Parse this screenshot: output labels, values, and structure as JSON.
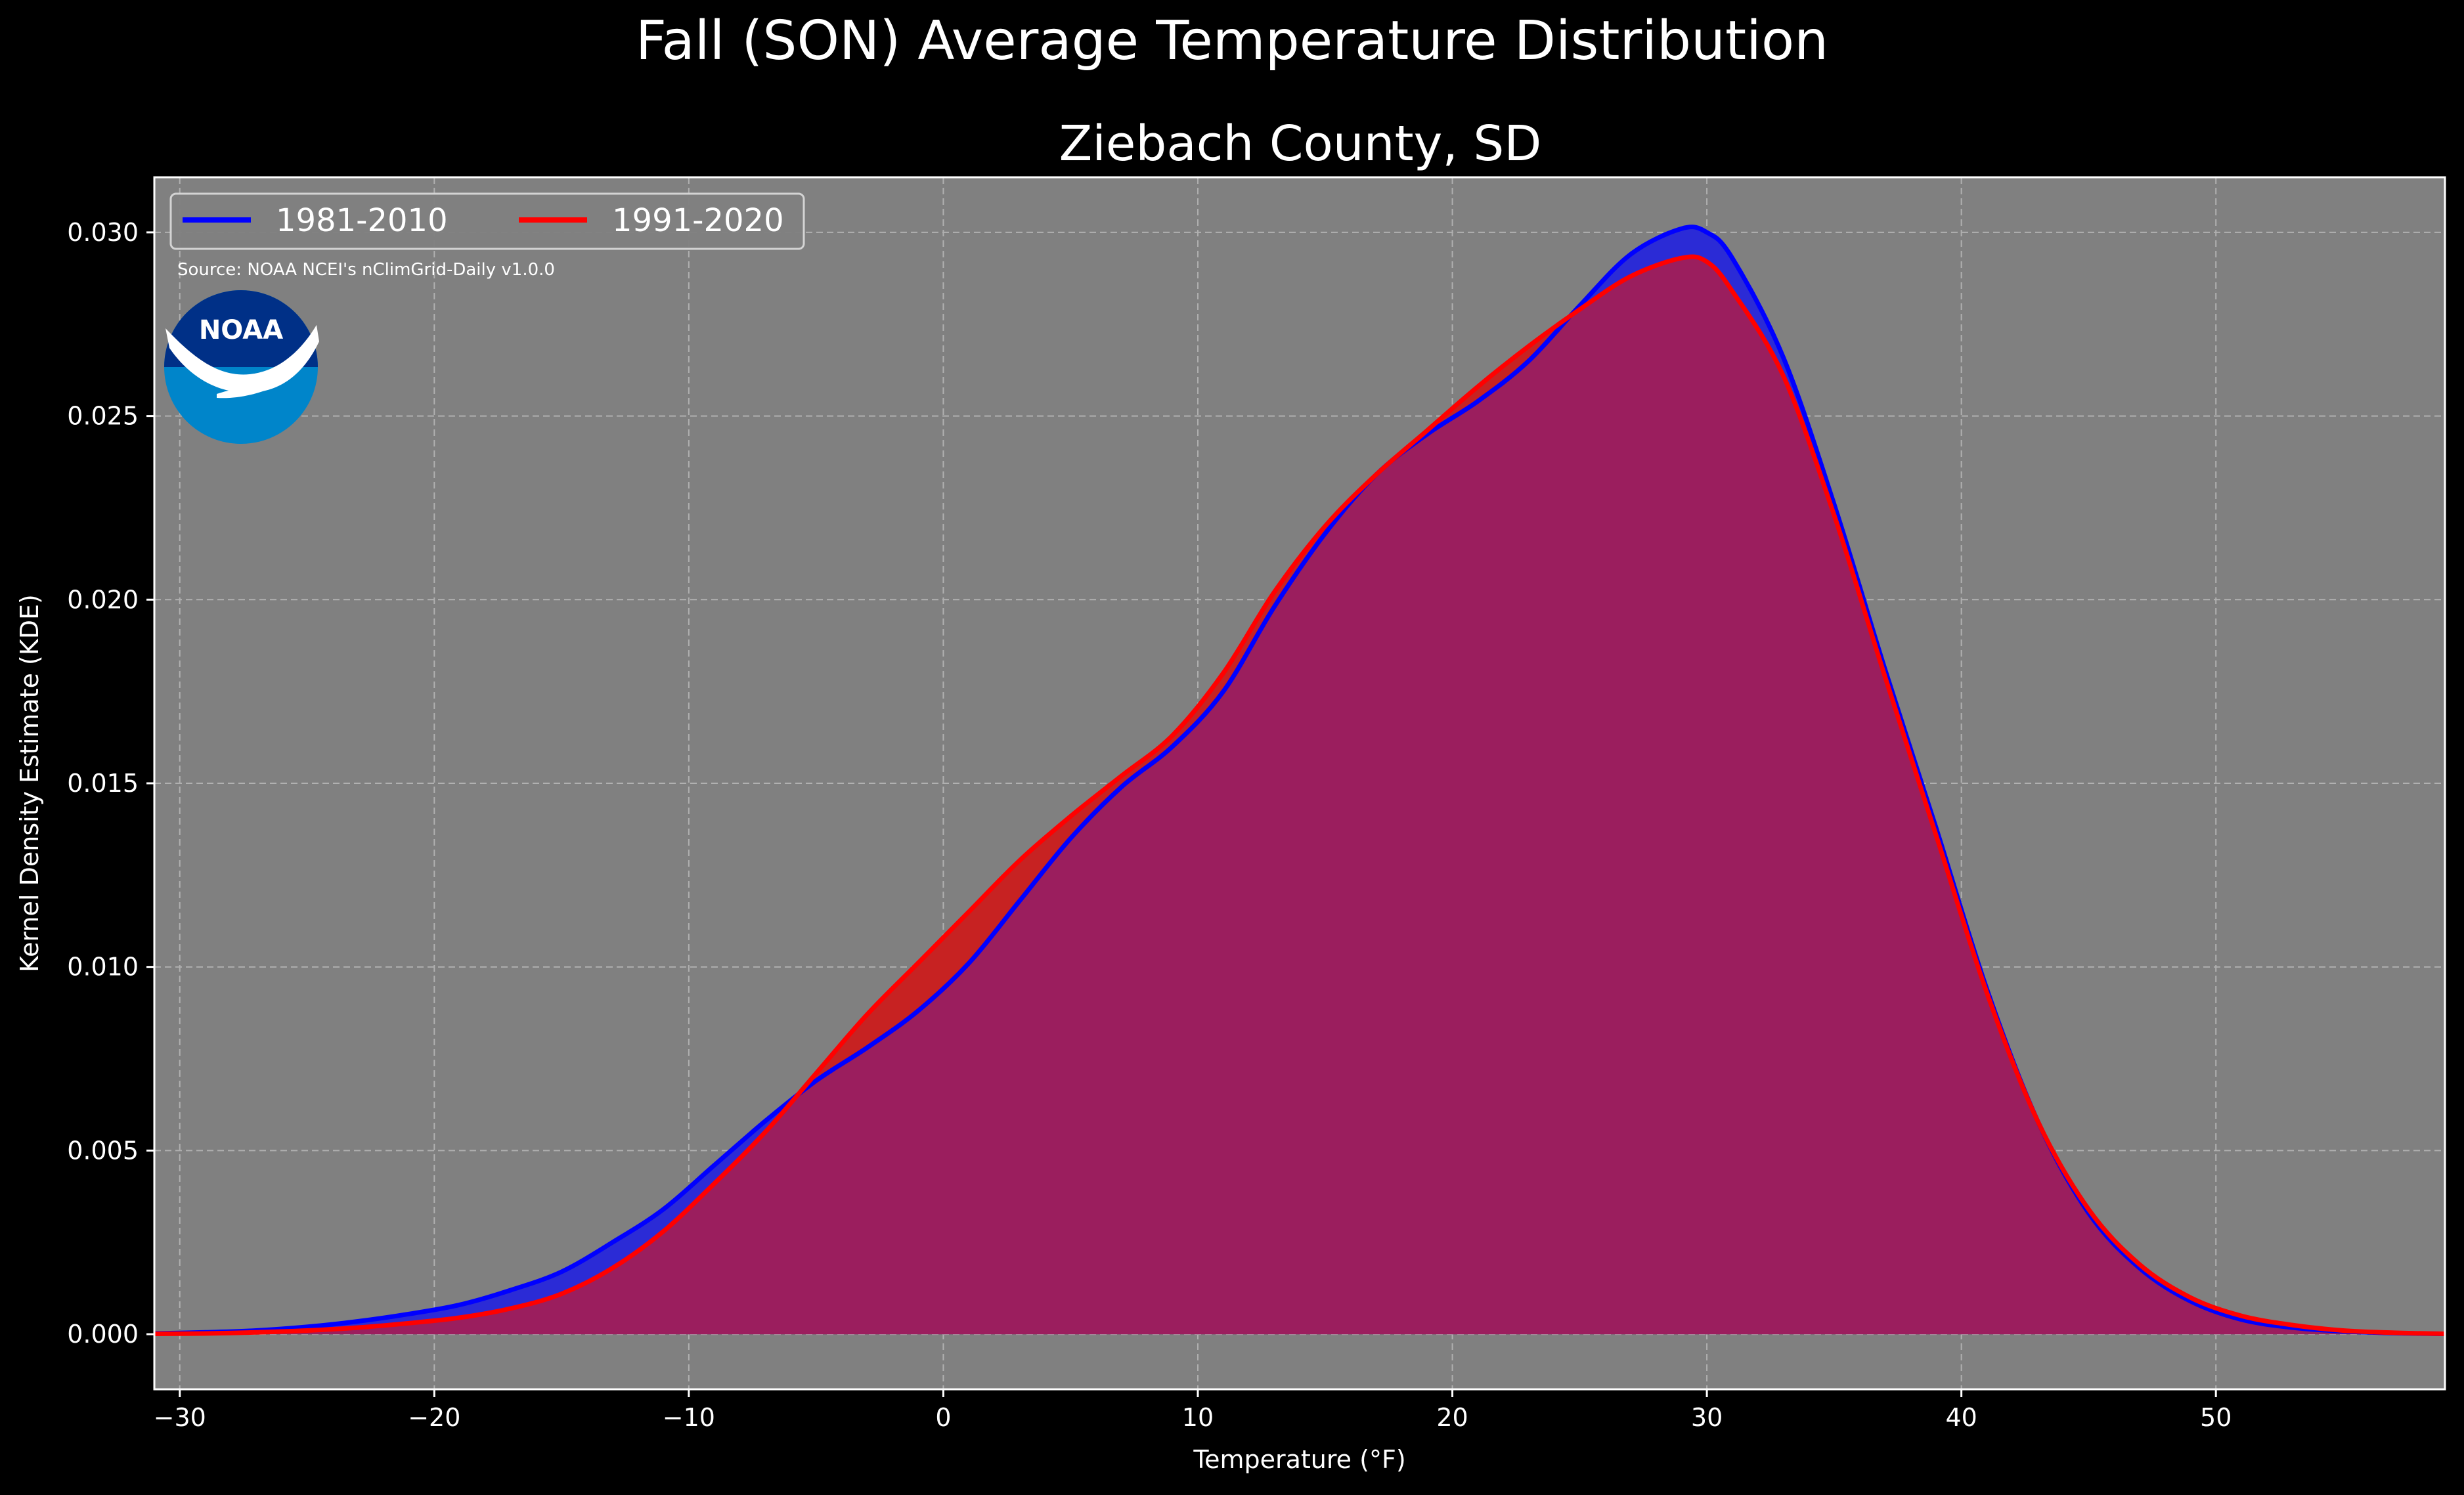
{
  "chart_data": {
    "type": "area",
    "title": "Fall (SON) Average Temperature Distribution",
    "subtitle": "Ziebach County, SD",
    "xlabel": "Temperature (°F)",
    "ylabel": "Kernel Density Estimate (KDE)",
    "xlim": [
      -31,
      59
    ],
    "ylim": [
      -0.0015,
      0.0315
    ],
    "xticks": [
      -30,
      -20,
      -10,
      0,
      10,
      20,
      30,
      40,
      50
    ],
    "xtick_labels": [
      "−30",
      "−20",
      "−10",
      "0",
      "10",
      "20",
      "30",
      "40",
      "50"
    ],
    "yticks": [
      0.0,
      0.005,
      0.01,
      0.015,
      0.02,
      0.025,
      0.03
    ],
    "ytick_labels": [
      "0.000",
      "0.005",
      "0.010",
      "0.015",
      "0.020",
      "0.025",
      "0.030"
    ],
    "grid": true,
    "legend_position": "top-left",
    "annotation": "Source: NOAA NCEI's nClimGrid-Daily v1.0.0",
    "logo_text": "NOAA",
    "x": [
      -31,
      -29,
      -27,
      -25,
      -23,
      -21,
      -19,
      -17,
      -15,
      -13,
      -11,
      -9,
      -7,
      -5,
      -3,
      -1,
      1,
      3,
      5,
      7,
      9,
      11,
      13,
      15,
      17,
      19,
      21,
      23,
      25,
      27,
      29,
      30,
      31,
      33,
      35,
      37,
      39,
      41,
      43,
      45,
      47,
      49,
      51,
      53,
      55,
      57,
      59
    ],
    "series": [
      {
        "name": "1981-2010",
        "color": "#0000ff",
        "fill": "#2b2bd6",
        "values": [
          2e-05,
          5e-05,
          0.0001,
          0.0002,
          0.00035,
          0.00055,
          0.0008,
          0.0012,
          0.0017,
          0.0025,
          0.0034,
          0.0046,
          0.0058,
          0.0069,
          0.0078,
          0.0088,
          0.0101,
          0.0118,
          0.0135,
          0.0149,
          0.016,
          0.0175,
          0.0198,
          0.0218,
          0.0234,
          0.0245,
          0.0254,
          0.0265,
          0.028,
          0.0294,
          0.0301,
          0.03,
          0.0293,
          0.0266,
          0.0226,
          0.0181,
          0.0138,
          0.0094,
          0.0058,
          0.0033,
          0.0018,
          0.0009,
          0.0004,
          0.00018,
          8e-05,
          3e-05,
          1e-05
        ]
      },
      {
        "name": "1991-2020",
        "color": "#ff0000",
        "fill": "#c72222",
        "values": [
          1e-05,
          2e-05,
          5e-05,
          0.0001,
          0.00018,
          0.0003,
          0.00045,
          0.0007,
          0.0011,
          0.0018,
          0.0028,
          0.0041,
          0.0055,
          0.0071,
          0.0087,
          0.0101,
          0.0115,
          0.0129,
          0.0141,
          0.0152,
          0.0163,
          0.018,
          0.0202,
          0.022,
          0.0234,
          0.0246,
          0.0258,
          0.0269,
          0.0279,
          0.0288,
          0.0293,
          0.0292,
          0.0284,
          0.0261,
          0.0223,
          0.0179,
          0.0136,
          0.0093,
          0.0058,
          0.0034,
          0.0019,
          0.001,
          0.0005,
          0.00025,
          0.0001,
          4e-05,
          1e-05
        ]
      }
    ]
  },
  "colors": {
    "page_background": "#000000",
    "plot_background": "#808080",
    "grid": "#b0b0b0",
    "overlap_fill": "#9b1e5e"
  }
}
